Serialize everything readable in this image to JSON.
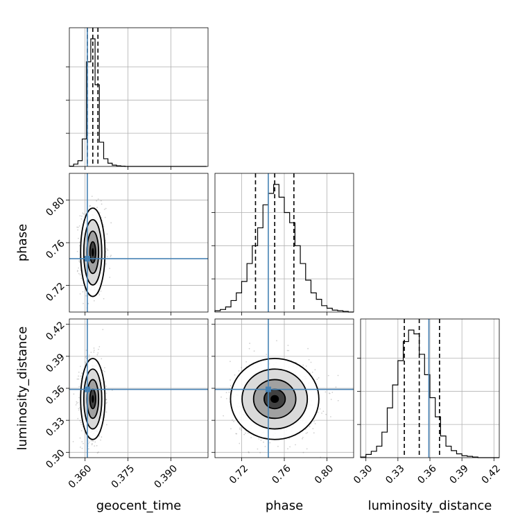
{
  "chart_data": {
    "type": "corner",
    "parameters": [
      {
        "name": "geocent_time",
        "label": "geocent_time",
        "range": [
          0.3545,
          0.403
        ],
        "ticks": [
          0.36,
          0.375,
          0.39
        ],
        "tick_labels": [
          "0.360",
          "0.375",
          "0.390"
        ],
        "truth": 0.3608,
        "quantiles": [
          0.3608,
          0.3627,
          0.3645
        ],
        "hist": {
          "edges_start": 0.3545,
          "bin_width": 0.0015,
          "counts": [
            2,
            18,
            45,
            215,
            820,
            1000,
            640,
            190,
            60,
            25,
            10,
            5,
            2,
            0,
            0,
            0,
            0,
            0,
            0,
            0,
            0,
            0,
            0,
            0,
            0,
            0,
            0,
            0,
            0,
            0,
            0,
            0
          ]
        }
      },
      {
        "name": "phase",
        "label": "phase",
        "range": [
          0.695,
          0.825
        ],
        "ticks": [
          0.72,
          0.76,
          0.8
        ],
        "tick_labels": [
          "0.72",
          "0.76",
          "0.80"
        ],
        "truth": 0.745,
        "quantiles": [
          0.733,
          0.751,
          0.769
        ],
        "hist": {
          "edges_start": 0.695,
          "bin_width": 0.005,
          "counts": [
            10,
            20,
            40,
            90,
            150,
            240,
            380,
            520,
            660,
            840,
            930,
            1000,
            900,
            780,
            700,
            520,
            380,
            250,
            150,
            100,
            50,
            30,
            15,
            10,
            5,
            0
          ]
        }
      },
      {
        "name": "luminosity_distance",
        "label": "luminosity_distance",
        "range": [
          0.295,
          0.425
        ],
        "ticks": [
          0.3,
          0.33,
          0.36,
          0.39,
          0.42
        ],
        "tick_labels": [
          "0.30",
          "0.33",
          "0.36",
          "0.39",
          "0.42"
        ],
        "truth": 0.359,
        "quantiles": [
          0.336,
          0.35,
          0.369
        ],
        "hist": {
          "edges_start": 0.295,
          "bin_width": 0.005,
          "counts": [
            5,
            25,
            50,
            90,
            200,
            390,
            570,
            760,
            910,
            1000,
            970,
            810,
            650,
            470,
            320,
            170,
            90,
            55,
            30,
            15,
            10,
            5,
            0,
            0,
            0,
            0
          ]
        }
      }
    ],
    "sample_centers": {
      "geocent_time": 0.3627,
      "phase": 0.751,
      "luminosity_distance": 0.35
    }
  }
}
